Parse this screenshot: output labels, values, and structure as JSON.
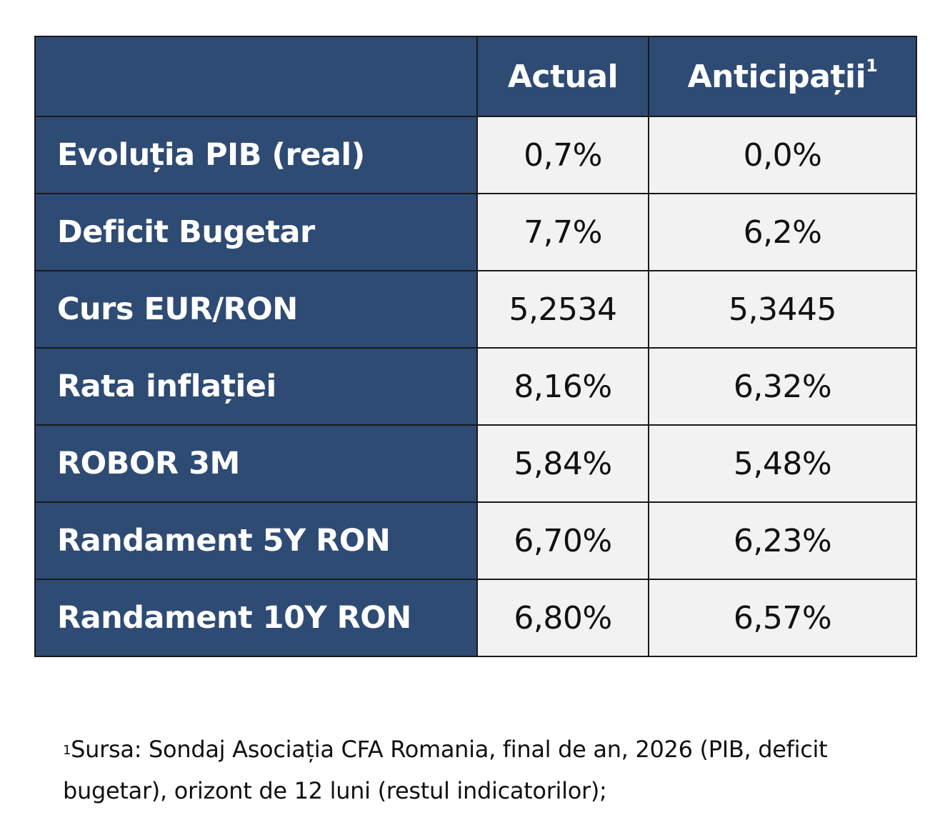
{
  "table": {
    "headers": [
      "",
      "Actual",
      "Anticipații",
      "1"
    ],
    "rows": [
      {
        "label": "Evoluția PIB (real)",
        "actual": "0,7%",
        "anticipatii": "0,0%"
      },
      {
        "label": "Deficit Bugetar",
        "actual": "7,7%",
        "anticipatii": "6,2%"
      },
      {
        "label": "Curs EUR/RON",
        "actual": "5,2534",
        "anticipatii": "5,3445"
      },
      {
        "label": "Rata inflației",
        "actual": "8,16%",
        "anticipatii": "6,32%"
      },
      {
        "label": "ROBOR 3M",
        "actual": "5,84%",
        "anticipatii": "5,48%"
      },
      {
        "label": "Randament 5Y RON",
        "actual": "6,70%",
        "anticipatii": "6,23%"
      },
      {
        "label": "Randament 10Y RON",
        "actual": "6,80%",
        "anticipatii": "6,57%"
      }
    ]
  },
  "footnote": {
    "marker": "1",
    "text": "Sursa: Sondaj Asociația CFA Romania, final de an, 2026 (PIB, deficit bugetar), orizont de 12 luni (restul indicatorilor);"
  },
  "colors": {
    "header_bg": "#2e4b74",
    "cell_bg": "#f2f2f2",
    "border": "#1a1a1a"
  }
}
